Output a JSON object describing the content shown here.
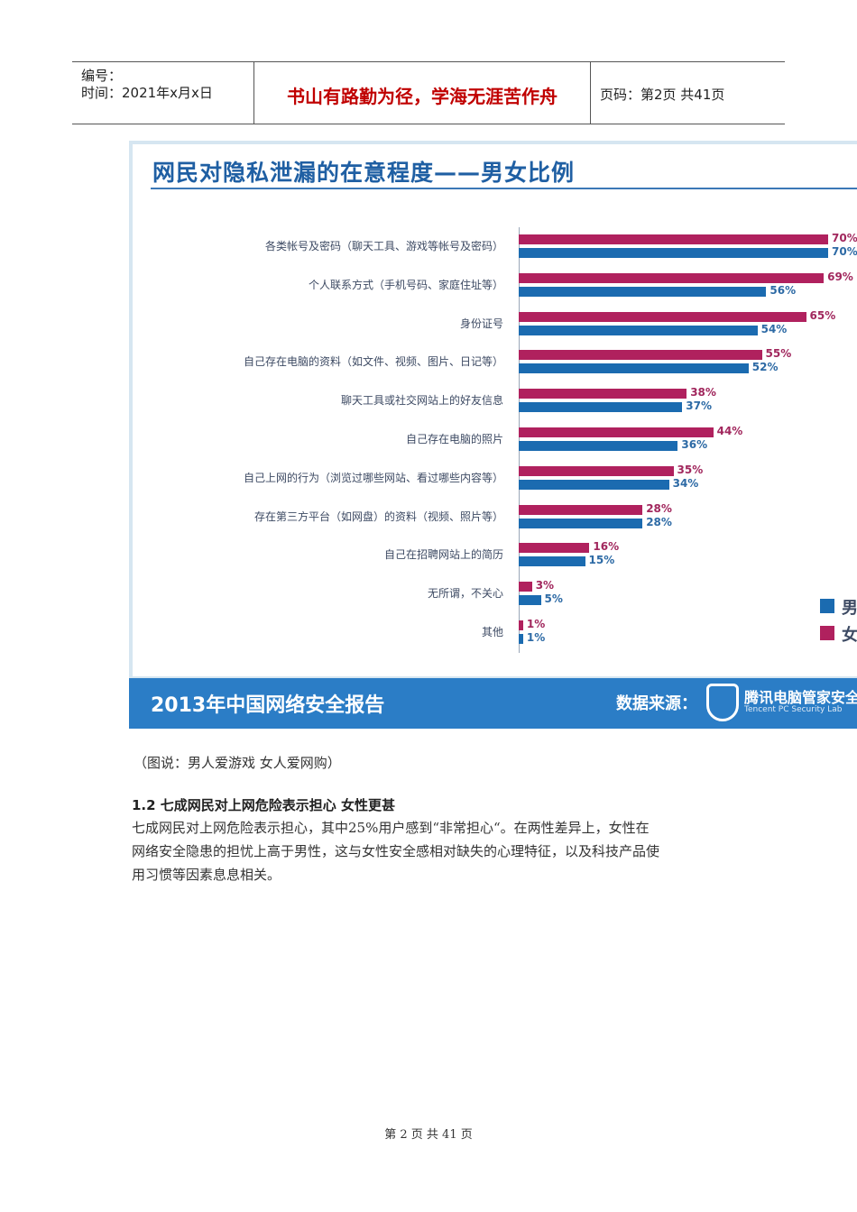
{
  "header": {
    "serial_label": "编号：",
    "time_label": "时间：2021年x月x日",
    "motto": "书山有路勤为径，学海无涯苦作舟",
    "page_label": "页码：第2页  共41页"
  },
  "chart_image": {
    "title": "网民对隐私泄漏的在意程度——男女比例",
    "report_label": "2013年中国网络安全报告",
    "source_label": "数据来源：",
    "brand_label": "腾讯电脑管家安全",
    "brand_sub": "Tencent PC Security Lab",
    "legend": [
      "男",
      "女"
    ],
    "colors": {
      "female": "#b0215e",
      "male": "#1b6bb0"
    }
  },
  "chart_data": {
    "type": "bar",
    "orientation": "horizontal",
    "title": "网民对隐私泄漏的在意程度——男女比例",
    "categories": [
      "各类帐号及密码（聊天工具、游戏等帐号及密码）",
      "个人联系方式（手机号码、家庭住址等）",
      "身份证号",
      "自己存在电脑的资料（如文件、视频、图片、日记等）",
      "聊天工具或社交网站上的好友信息",
      "自己存在电脑的照片",
      "自己上网的行为（浏览过哪些网站、看过哪些内容等）",
      "存在第三方平台（如网盘）的资料（视频、照片等）",
      "自己在招聘网站上的简历",
      "无所谓，不关心",
      "其他"
    ],
    "series": [
      {
        "name": "女",
        "values": [
          70,
          69,
          65,
          55,
          38,
          44,
          35,
          28,
          16,
          3,
          1
        ]
      },
      {
        "name": "男",
        "values": [
          70,
          56,
          54,
          52,
          37,
          36,
          34,
          28,
          15,
          5,
          1
        ]
      }
    ],
    "value_labels": {
      "女": [
        "70%",
        "69%",
        "65%",
        "55%",
        "38%",
        "44%",
        "35%",
        "28%",
        "16%",
        "3%",
        "1%"
      ],
      "男": [
        "70%",
        "56%",
        "54%",
        "52%",
        "37%",
        "36%",
        "34%",
        "28%",
        "15%",
        "5%",
        "1%"
      ]
    },
    "legend": [
      "男",
      "女"
    ],
    "legend_position": "right",
    "grid": false
  },
  "caption": "（图说：男人爱游戏    女人爱网购）",
  "section": {
    "title": "1.2 七成网民对上网危险表示担心    女性更甚",
    "lines": [
      "七成网民对上网危险表示担心，其中25%用户感到“非常担心“。在两性差异上，女性在",
      "网络安全隐患的担忧上高于男性，这与女性安全感相对缺失的心理特征，以及科技产品使",
      "用习惯等因素息息相关。"
    ]
  },
  "footer": "第 2 页 共 41 页"
}
